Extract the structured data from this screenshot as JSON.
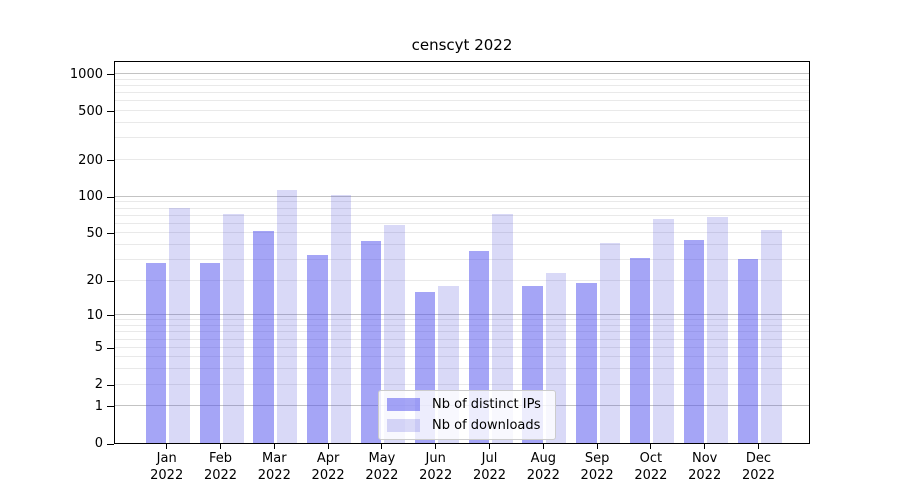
{
  "title": "censcyt 2022",
  "legend": {
    "items": [
      {
        "label": "Nb of distinct IPs",
        "color": "rgba(82,82,237,0.52)"
      },
      {
        "label": "Nb of downloads",
        "color": "rgba(65,65,215,0.20)"
      }
    ]
  },
  "colors": {
    "bar_distinct_ips": "#a5a5f0",
    "bar_downloads": "#dcdcf8",
    "gridline_major": "#c3c3c3",
    "gridline_minor": "#e9e9e9",
    "axis_frame": "#000000"
  },
  "y_axis": {
    "tick_values": [
      0,
      1,
      2,
      5,
      10,
      20,
      50,
      100,
      200,
      500,
      1000
    ],
    "tick_labels": [
      "0",
      "1",
      "2",
      "5",
      "10",
      "20",
      "50",
      "100",
      "200",
      "500",
      "1000"
    ]
  },
  "x_axis": {
    "months": [
      "Jan",
      "Feb",
      "Mar",
      "Apr",
      "May",
      "Jun",
      "Jul",
      "Aug",
      "Sep",
      "Oct",
      "Nov",
      "Dec"
    ],
    "year": "2022"
  },
  "chart_data": {
    "type": "bar",
    "title": "censcyt 2022",
    "categories": [
      "Jan 2022",
      "Feb 2022",
      "Mar 2022",
      "Apr 2022",
      "May 2022",
      "Jun 2022",
      "Jul 2022",
      "Aug 2022",
      "Sep 2022",
      "Oct 2022",
      "Nov 2022",
      "Dec 2022"
    ],
    "series": [
      {
        "name": "Nb of distinct IPs",
        "values": [
          28,
          28,
          52,
          33,
          43,
          16,
          35,
          18,
          19,
          31,
          44,
          30
        ]
      },
      {
        "name": "Nb of downloads",
        "values": [
          80,
          72,
          112,
          102,
          58,
          18,
          72,
          23,
          41,
          65,
          68,
          53
        ]
      }
    ],
    "xlabel": "",
    "ylabel": "",
    "y_scale": "log10(value+1)",
    "y_ticks": [
      0,
      1,
      2,
      5,
      10,
      20,
      50,
      100,
      200,
      500,
      1000
    ],
    "ylim": [
      0,
      1300
    ],
    "grid": true,
    "legend_position": "inside lower center"
  }
}
